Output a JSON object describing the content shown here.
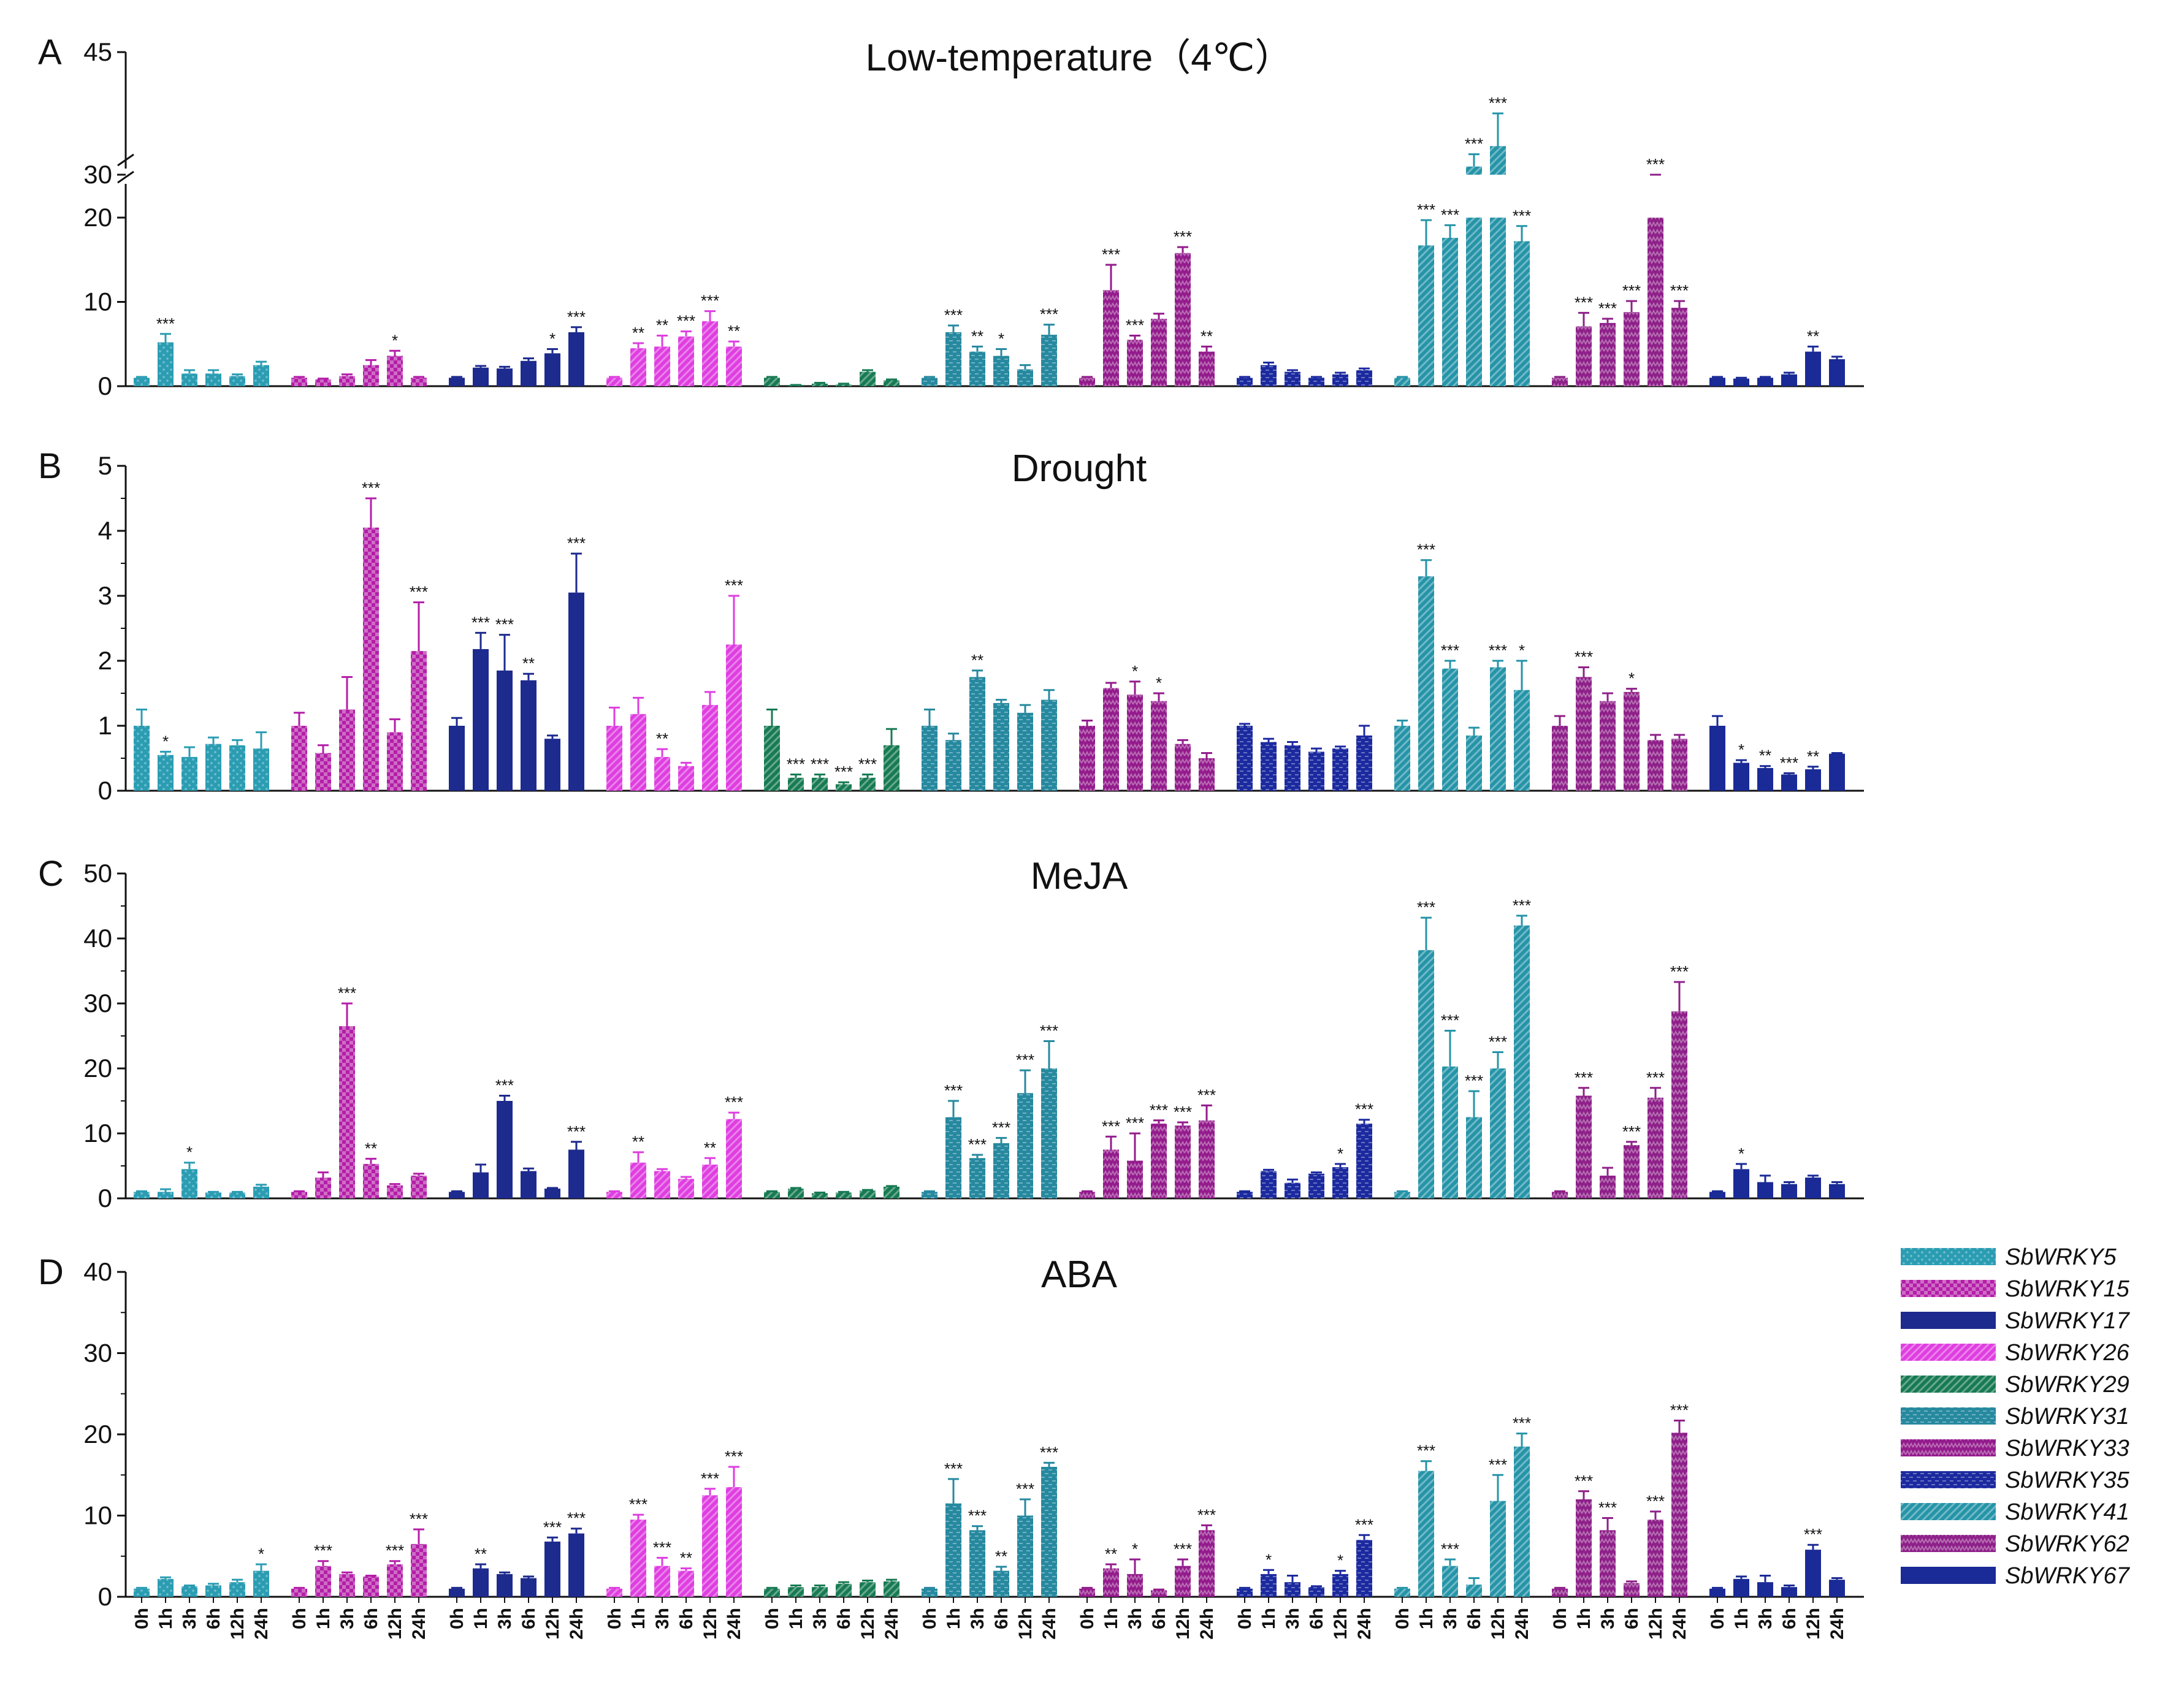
{
  "chart_data": {
    "type": "bar",
    "time_points": [
      "0h",
      "1h",
      "3h",
      "6h",
      "12h",
      "24h"
    ],
    "genes": [
      {
        "name": "SbWRKY5",
        "color": "#2b9db3",
        "pattern": "dots"
      },
      {
        "name": "SbWRKY15",
        "color": "#b41ea8",
        "pattern": "check"
      },
      {
        "name": "SbWRKY17",
        "color": "#1d2a8e",
        "pattern": "solid"
      },
      {
        "name": "SbWRKY26",
        "color": "#df3ee0",
        "pattern": "stripes"
      },
      {
        "name": "SbWRKY29",
        "color": "#177a53",
        "pattern": "stripes"
      },
      {
        "name": "SbWRKY31",
        "color": "#26899f",
        "pattern": "dash"
      },
      {
        "name": "SbWRKY33",
        "color": "#931b8c",
        "pattern": "zigzag"
      },
      {
        "name": "SbWRKY35",
        "color": "#1c2aa0",
        "pattern": "dash"
      },
      {
        "name": "SbWRKY41",
        "color": "#2594a8",
        "pattern": "stripes"
      },
      {
        "name": "SbWRKY62",
        "color": "#8e2089",
        "pattern": "zigzag"
      },
      {
        "name": "SbWRKY67",
        "color": "#1a2a96",
        "pattern": "solid"
      }
    ],
    "panels": [
      {
        "letter": "A",
        "title": "Low-temperature（4℃）",
        "ylabel": "",
        "ylim": [
          0,
          45
        ],
        "axis_break": [
          20,
          30
        ],
        "yticks": [
          0,
          10,
          20,
          30,
          45
        ],
        "values": [
          [
            1.0,
            5.2,
            1.5,
            1.5,
            1.2,
            2.5
          ],
          [
            1.0,
            0.8,
            1.2,
            2.5,
            3.6,
            1.0
          ],
          [
            1.0,
            2.2,
            2.1,
            3.0,
            3.9,
            6.4
          ],
          [
            1.0,
            4.5,
            4.7,
            5.9,
            7.7,
            4.7
          ],
          [
            1.0,
            0.1,
            0.3,
            0.2,
            1.7,
            0.7
          ],
          [
            1.0,
            6.4,
            4.1,
            3.6,
            2.0,
            6.1
          ],
          [
            1.0,
            11.4,
            5.5,
            8.0,
            15.8,
            4.1
          ],
          [
            1.0,
            2.5,
            1.7,
            1.0,
            1.4,
            1.9
          ],
          [
            1.0,
            16.7,
            17.6,
            31.0,
            33.5,
            17.2
          ],
          [
            1.0,
            7.1,
            7.5,
            8.8,
            21.9,
            9.3
          ],
          [
            1.0,
            0.9,
            1.0,
            1.4,
            4.1,
            3.2
          ]
        ],
        "errors": [
          [
            0.1,
            1.0,
            0.4,
            0.4,
            0.2,
            0.4
          ],
          [
            0.1,
            0.1,
            0.2,
            0.6,
            0.6,
            0.1
          ],
          [
            0.1,
            0.2,
            0.2,
            0.3,
            0.5,
            0.6
          ],
          [
            0.1,
            0.6,
            1.3,
            0.6,
            1.2,
            0.6
          ],
          [
            0.1,
            0.05,
            0.1,
            0.1,
            0.2,
            0.1
          ],
          [
            0.1,
            0.8,
            0.6,
            0.8,
            0.5,
            1.2
          ],
          [
            0.1,
            3.0,
            0.5,
            0.6,
            0.7,
            0.6
          ],
          [
            0.1,
            0.3,
            0.2,
            0.1,
            0.2,
            0.2
          ],
          [
            0.1,
            3.0,
            1.5,
            1.5,
            4.0,
            1.8
          ],
          [
            0.1,
            1.6,
            0.5,
            1.3,
            0.8,
            0.8
          ],
          [
            0.1,
            0.1,
            0.1,
            0.2,
            0.6,
            0.3
          ]
        ],
        "stars": [
          [
            "",
            "***",
            "",
            "",
            "",
            ""
          ],
          [
            "",
            "",
            "",
            "",
            "*",
            ""
          ],
          [
            "",
            "",
            "",
            "",
            "*",
            "***"
          ],
          [
            "",
            "**",
            "**",
            "***",
            "***",
            "**"
          ],
          [
            "",
            "",
            "",
            "",
            "",
            ""
          ],
          [
            "",
            "***",
            "**",
            "*",
            "",
            "***"
          ],
          [
            "",
            "***",
            "***",
            "",
            "***",
            "**"
          ],
          [
            "",
            "",
            "",
            "",
            "",
            ""
          ],
          [
            "",
            "***",
            "***",
            "***",
            "***",
            "***"
          ],
          [
            "",
            "***",
            "***",
            "***",
            "***",
            "***"
          ],
          [
            "",
            "",
            "",
            "",
            "**",
            ""
          ]
        ]
      },
      {
        "letter": "B",
        "title": "Drought",
        "ylabel": "",
        "ylim": [
          0,
          5
        ],
        "yticks": [
          0,
          1,
          2,
          3,
          4,
          5
        ],
        "values": [
          [
            1.0,
            0.55,
            0.52,
            0.72,
            0.7,
            0.65
          ],
          [
            1.0,
            0.58,
            1.25,
            4.05,
            0.9,
            2.15
          ],
          [
            1.0,
            2.18,
            1.85,
            1.7,
            0.8,
            3.05
          ],
          [
            1.0,
            1.18,
            0.52,
            0.38,
            1.32,
            2.25
          ],
          [
            1.0,
            0.2,
            0.2,
            0.1,
            0.2,
            0.7
          ],
          [
            1.0,
            0.78,
            1.75,
            1.35,
            1.2,
            1.4
          ],
          [
            1.0,
            1.58,
            1.48,
            1.38,
            0.72,
            0.5
          ],
          [
            1.0,
            0.75,
            0.7,
            0.6,
            0.65,
            0.85
          ],
          [
            1.0,
            3.3,
            1.88,
            0.85,
            1.9,
            1.55
          ],
          [
            1.0,
            1.75,
            1.38,
            1.52,
            0.78,
            0.8
          ],
          [
            1.0,
            0.43,
            0.35,
            0.25,
            0.33,
            0.57
          ]
        ],
        "errors": [
          [
            0.25,
            0.05,
            0.15,
            0.1,
            0.08,
            0.25
          ],
          [
            0.2,
            0.12,
            0.5,
            0.45,
            0.2,
            0.75
          ],
          [
            0.12,
            0.25,
            0.55,
            0.1,
            0.05,
            0.6
          ],
          [
            0.28,
            0.25,
            0.12,
            0.05,
            0.2,
            0.75
          ],
          [
            0.25,
            0.05,
            0.05,
            0.03,
            0.05,
            0.25
          ],
          [
            0.25,
            0.1,
            0.1,
            0.05,
            0.12,
            0.15
          ],
          [
            0.08,
            0.08,
            0.2,
            0.12,
            0.06,
            0.08
          ],
          [
            0.03,
            0.05,
            0.05,
            0.05,
            0.03,
            0.15
          ],
          [
            0.08,
            0.25,
            0.12,
            0.12,
            0.1,
            0.45
          ],
          [
            0.15,
            0.15,
            0.12,
            0.05,
            0.08,
            0.06
          ],
          [
            0.15,
            0.04,
            0.03,
            0.02,
            0.04,
            0.01
          ]
        ],
        "stars": [
          [
            "",
            "*",
            "",
            "",
            "",
            ""
          ],
          [
            "",
            "",
            "",
            "***",
            "",
            "***"
          ],
          [
            "",
            "***",
            "***",
            "**",
            "",
            "***"
          ],
          [
            "",
            "",
            "**",
            "",
            "",
            "***"
          ],
          [
            "",
            "***",
            "***",
            "***",
            "***",
            ""
          ],
          [
            "",
            "",
            "**",
            "",
            "",
            ""
          ],
          [
            "",
            "",
            "*",
            "*",
            "",
            ""
          ],
          [
            "",
            "",
            "",
            "",
            "",
            ""
          ],
          [
            "",
            "***",
            "***",
            "",
            "***",
            "*"
          ],
          [
            "",
            "***",
            "",
            "*",
            "",
            ""
          ],
          [
            "",
            "*",
            "**",
            "***",
            "**",
            ""
          ]
        ]
      },
      {
        "letter": "C",
        "title": "MeJA",
        "ylabel": "",
        "ylim": [
          0,
          50
        ],
        "yticks": [
          0,
          10,
          20,
          30,
          40,
          50
        ],
        "values": [
          [
            1.0,
            1.0,
            4.5,
            0.9,
            0.9,
            1.8
          ],
          [
            1.0,
            3.2,
            26.5,
            5.3,
            2.0,
            3.5
          ],
          [
            1.0,
            4.0,
            15.0,
            4.2,
            1.5,
            7.5
          ],
          [
            1.0,
            5.5,
            4.2,
            3.0,
            5.2,
            12.2
          ],
          [
            1.0,
            1.5,
            0.8,
            0.9,
            1.2,
            1.8
          ],
          [
            1.0,
            12.5,
            6.2,
            8.5,
            16.2,
            20.0
          ],
          [
            1.0,
            7.5,
            5.8,
            11.5,
            11.2,
            12.0
          ],
          [
            1.0,
            4.2,
            2.4,
            3.8,
            4.8,
            11.5
          ],
          [
            1.0,
            38.2,
            20.3,
            12.5,
            20.0,
            42.0
          ],
          [
            1.0,
            15.8,
            3.5,
            8.2,
            15.5,
            28.8
          ],
          [
            1.0,
            4.5,
            2.5,
            2.2,
            3.2,
            2.2
          ]
        ],
        "errors": [
          [
            0.1,
            0.4,
            1.0,
            0.1,
            0.1,
            0.3
          ],
          [
            0.1,
            0.8,
            3.5,
            0.8,
            0.2,
            0.3
          ],
          [
            0.1,
            1.2,
            0.8,
            0.4,
            0.1,
            1.2
          ],
          [
            0.1,
            1.6,
            0.3,
            0.3,
            1.0,
            1.0
          ],
          [
            0.1,
            0.1,
            0.1,
            0.1,
            0.1,
            0.1
          ],
          [
            0.1,
            2.5,
            0.5,
            0.8,
            3.5,
            4.2
          ],
          [
            0.1,
            2.0,
            4.2,
            0.5,
            0.5,
            2.3
          ],
          [
            0.1,
            0.2,
            0.5,
            0.2,
            0.5,
            0.6
          ],
          [
            0.1,
            5.0,
            5.5,
            4.0,
            2.5,
            1.5
          ],
          [
            0.1,
            1.2,
            1.2,
            0.5,
            1.5,
            4.5
          ],
          [
            0.1,
            0.8,
            1.0,
            0.3,
            0.3,
            0.3
          ]
        ],
        "stars": [
          [
            "",
            "",
            "*",
            "",
            "",
            ""
          ],
          [
            "",
            "",
            "***",
            "**",
            "",
            ""
          ],
          [
            "",
            "",
            "***",
            "",
            "",
            "***"
          ],
          [
            "",
            "**",
            "",
            "",
            "**",
            "***"
          ],
          [
            "",
            "",
            "",
            "",
            "",
            ""
          ],
          [
            "",
            "***",
            "***",
            "***",
            "***",
            "***"
          ],
          [
            "",
            "***",
            "***",
            "***",
            "***",
            "***"
          ],
          [
            "",
            "",
            "",
            "",
            "*",
            "***"
          ],
          [
            "",
            "***",
            "***",
            "***",
            "***",
            "***"
          ],
          [
            "",
            "***",
            "",
            "***",
            "***",
            "***"
          ],
          [
            "",
            "*",
            "",
            "",
            "",
            ""
          ]
        ]
      },
      {
        "letter": "D",
        "title": "ABA",
        "ylabel": "",
        "ylim": [
          0,
          40
        ],
        "yticks": [
          0,
          10,
          20,
          30,
          40
        ],
        "values": [
          [
            1.0,
            2.2,
            1.3,
            1.4,
            1.8,
            3.2
          ],
          [
            1.0,
            3.8,
            2.8,
            2.5,
            4.0,
            6.5
          ],
          [
            1.0,
            3.5,
            2.8,
            2.3,
            6.8,
            7.8
          ],
          [
            1.0,
            9.5,
            3.8,
            3.2,
            12.5,
            13.5
          ],
          [
            1.0,
            1.2,
            1.2,
            1.6,
            1.8,
            1.9
          ],
          [
            1.0,
            11.5,
            8.2,
            3.2,
            10.0,
            16.0
          ],
          [
            1.0,
            3.5,
            2.8,
            0.8,
            3.8,
            8.2
          ],
          [
            1.0,
            2.8,
            1.8,
            1.2,
            2.8,
            7.0
          ],
          [
            1.0,
            15.5,
            3.8,
            1.5,
            11.8,
            18.5
          ],
          [
            1.0,
            12.0,
            8.2,
            1.7,
            9.5,
            20.2
          ],
          [
            1.0,
            2.2,
            1.8,
            1.2,
            5.8,
            2.1
          ]
        ],
        "errors": [
          [
            0.1,
            0.2,
            0.1,
            0.2,
            0.3,
            0.8
          ],
          [
            0.1,
            0.6,
            0.2,
            0.1,
            0.4,
            1.8
          ],
          [
            0.1,
            0.5,
            0.2,
            0.2,
            0.5,
            0.6
          ],
          [
            0.1,
            0.6,
            1.0,
            0.3,
            0.8,
            2.5
          ],
          [
            0.1,
            0.2,
            0.2,
            0.2,
            0.2,
            0.2
          ],
          [
            0.1,
            3.0,
            0.5,
            0.5,
            2.0,
            0.5
          ],
          [
            0.1,
            0.5,
            1.8,
            0.1,
            0.8,
            0.6
          ],
          [
            0.1,
            0.5,
            0.8,
            0.1,
            0.4,
            0.6
          ],
          [
            0.1,
            1.2,
            0.8,
            0.8,
            3.2,
            1.6
          ],
          [
            0.1,
            1.0,
            1.5,
            0.2,
            1.0,
            1.5
          ],
          [
            0.1,
            0.3,
            0.8,
            0.2,
            0.6,
            0.2
          ]
        ],
        "stars": [
          [
            "",
            "",
            "",
            "",
            "",
            "*"
          ],
          [
            "",
            "***",
            "",
            "",
            "***",
            "***"
          ],
          [
            "",
            "**",
            "",
            "",
            "***",
            "***"
          ],
          [
            "",
            "***",
            "***",
            "**",
            "***",
            "***"
          ],
          [
            "",
            "",
            "",
            "",
            "",
            ""
          ],
          [
            "",
            "***",
            "***",
            "**",
            "***",
            "***"
          ],
          [
            "",
            "**",
            "*",
            "",
            "***",
            "***"
          ],
          [
            "",
            "*",
            "",
            "",
            "*",
            "***"
          ],
          [
            "",
            "***",
            "***",
            "",
            "***",
            "***"
          ],
          [
            "",
            "***",
            "***",
            "",
            "***",
            "***"
          ],
          [
            "",
            "",
            "",
            "",
            "***",
            ""
          ]
        ]
      }
    ]
  }
}
